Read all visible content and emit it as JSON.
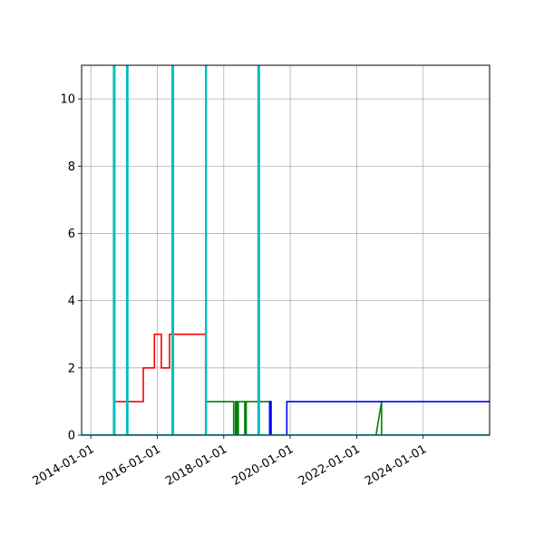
{
  "chart_data": {
    "type": "line",
    "title": "",
    "xlabel": "",
    "ylabel": "",
    "x_axis": "date",
    "xlim": [
      "2013-09-22",
      "2025-12-31"
    ],
    "ylim": [
      0,
      11
    ],
    "grid": true,
    "legend": "none",
    "x_ticks": [
      "2014-01-01",
      "2016-01-01",
      "2018-01-01",
      "2020-01-01",
      "2022-01-01",
      "2024-01-01"
    ],
    "y_ticks": [
      0,
      2,
      4,
      6,
      8,
      10
    ],
    "series": [
      {
        "color": "#ff0000",
        "points": [
          [
            "2013-09-22",
            0
          ],
          [
            "2014-09-15",
            0
          ],
          [
            "2014-09-15",
            1
          ],
          [
            "2015-08-01",
            1
          ],
          [
            "2015-08-01",
            2
          ],
          [
            "2015-12-01",
            2
          ],
          [
            "2015-12-01",
            3
          ],
          [
            "2016-02-15",
            3
          ],
          [
            "2016-02-15",
            2
          ],
          [
            "2016-05-15",
            2
          ],
          [
            "2016-05-15",
            3
          ],
          [
            "2017-06-15",
            3
          ],
          [
            "2017-06-15",
            0
          ],
          [
            "2025-12-31",
            0
          ]
        ]
      },
      {
        "color": "#008000",
        "points": [
          [
            "2013-09-22",
            0
          ],
          [
            "2017-06-20",
            0
          ],
          [
            "2017-06-20",
            1
          ],
          [
            "2018-04-20",
            1
          ],
          [
            "2018-04-20",
            0
          ],
          [
            "2018-05-10",
            0
          ],
          [
            "2018-05-10",
            1
          ],
          [
            "2018-05-25",
            1
          ],
          [
            "2018-05-25",
            0
          ],
          [
            "2018-06-10",
            0
          ],
          [
            "2018-06-10",
            1
          ],
          [
            "2018-08-20",
            1
          ],
          [
            "2018-08-20",
            0
          ],
          [
            "2018-09-05",
            0
          ],
          [
            "2018-09-05",
            1
          ],
          [
            "2019-05-25",
            1
          ],
          [
            "2019-05-25",
            0
          ],
          [
            "2022-08-01",
            0
          ],
          [
            "2022-10-01",
            1
          ],
          [
            "2022-10-01",
            0
          ],
          [
            "2025-12-31",
            0
          ]
        ]
      },
      {
        "color": "#0000ff",
        "points": [
          [
            "2013-09-22",
            0
          ],
          [
            "2019-05-20",
            0
          ],
          [
            "2019-05-20",
            1
          ],
          [
            "2019-06-05",
            1
          ],
          [
            "2019-06-05",
            0
          ],
          [
            "2019-11-25",
            0
          ],
          [
            "2019-11-25",
            1
          ],
          [
            "2025-12-31",
            1
          ]
        ]
      },
      {
        "color": "#00bfbf",
        "points": [
          [
            "2013-09-22",
            0
          ],
          [
            "2014-09-10",
            0
          ],
          [
            "2014-09-10",
            11
          ],
          [
            "2014-09-20",
            11
          ],
          [
            "2014-09-20",
            0
          ],
          [
            "2015-02-01",
            0
          ],
          [
            "2015-02-01",
            11
          ],
          [
            "2015-02-10",
            11
          ],
          [
            "2015-02-10",
            0
          ],
          [
            "2016-06-15",
            0
          ],
          [
            "2016-06-15",
            11
          ],
          [
            "2016-06-25",
            11
          ],
          [
            "2016-06-25",
            0
          ],
          [
            "2017-06-18",
            0
          ],
          [
            "2017-06-18",
            11
          ],
          [
            "2017-06-22",
            11
          ],
          [
            "2017-06-22",
            0
          ],
          [
            "2019-01-15",
            0
          ],
          [
            "2019-01-15",
            11
          ],
          [
            "2019-01-25",
            11
          ],
          [
            "2019-01-25",
            0
          ],
          [
            "2025-12-31",
            0
          ]
        ]
      }
    ]
  }
}
